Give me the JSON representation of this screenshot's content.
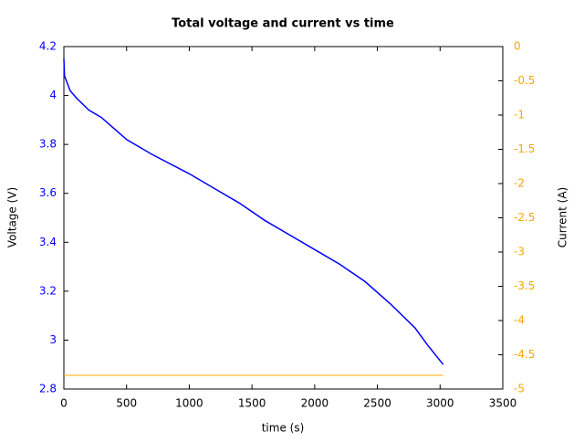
{
  "chart_data": {
    "type": "line",
    "title": "Total voltage and current vs time",
    "x_label": "time (s)",
    "y_label": "Voltage (V)",
    "y2_label": "Current (A)",
    "x": [
      0,
      5,
      50,
      100,
      200,
      300,
      500,
      700,
      1000,
      1200,
      1400,
      1600,
      1800,
      2000,
      2200,
      2400,
      2600,
      2800,
      2900,
      3025
    ],
    "series": [
      {
        "name": "Voltage",
        "color": "#0000ff",
        "axis": "y",
        "values": [
          4.15,
          4.08,
          4.02,
          3.99,
          3.94,
          3.91,
          3.82,
          3.76,
          3.68,
          3.62,
          3.56,
          3.49,
          3.43,
          3.37,
          3.31,
          3.24,
          3.15,
          3.05,
          2.98,
          2.9
        ]
      },
      {
        "name": "Current",
        "color": "#ffa500",
        "axis": "y2",
        "values": [
          -4.8,
          -4.8,
          -4.8,
          -4.8,
          -4.8,
          -4.8,
          -4.8,
          -4.8,
          -4.8,
          -4.8,
          -4.8,
          -4.8,
          -4.8,
          -4.8,
          -4.8,
          -4.8,
          -4.8,
          -4.8,
          -4.8,
          -4.8
        ]
      }
    ],
    "xlim": [
      0,
      3500
    ],
    "xticks": [
      0,
      500,
      1000,
      1500,
      2000,
      2500,
      3000,
      3500
    ],
    "ylim": [
      2.8,
      4.2
    ],
    "yticks": [
      2.8,
      3,
      3.2,
      3.4,
      3.6,
      3.8,
      4,
      4.2
    ],
    "y2lim": [
      -5,
      0
    ],
    "y2ticks": [
      0,
      -0.5,
      -1,
      -1.5,
      -2,
      -2.5,
      -3,
      -3.5,
      -4,
      -4.5,
      -5
    ],
    "grid": false
  }
}
